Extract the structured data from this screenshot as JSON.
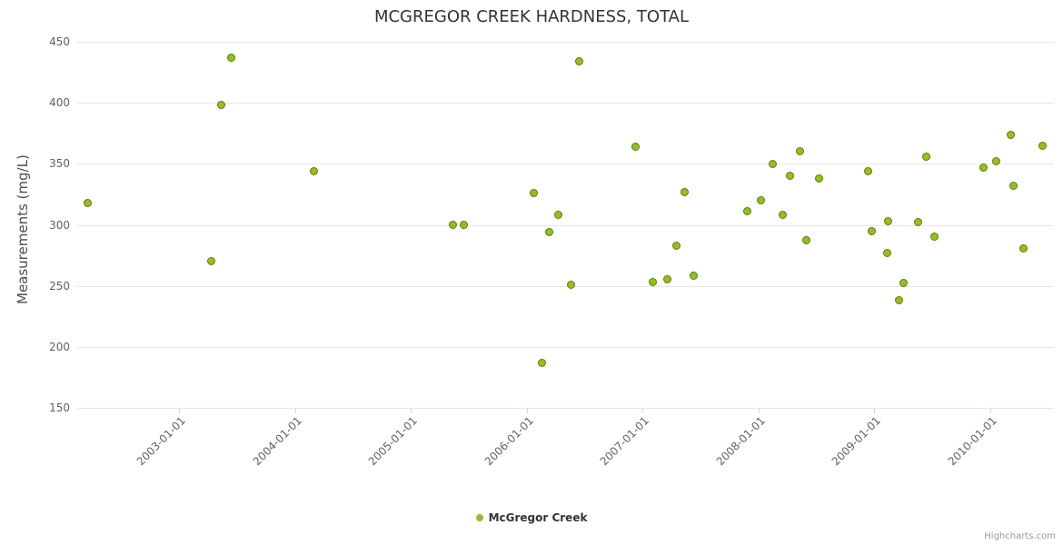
{
  "chart": {
    "credits": "Highcharts.com"
  },
  "chart_data": {
    "type": "scatter",
    "title": "MCGREGOR CREEK HARDNESS, TOTAL",
    "xlabel": "",
    "ylabel": "Measurements (mg/L)",
    "grid": "horizontal",
    "legend_position": "bottom-center",
    "x_axis": {
      "type": "datetime",
      "unit": "decimal_year",
      "min": 2002.12,
      "max": 2010.55,
      "tick_years": [
        2003,
        2004,
        2005,
        2006,
        2007,
        2008,
        2009,
        2010
      ],
      "tick_labels": [
        "2003-01-01",
        "2004-01-01",
        "2005-01-01",
        "2006-01-01",
        "2007-01-01",
        "2008-01-01",
        "2009-01-01",
        "2010-01-01"
      ]
    },
    "y_axis": {
      "min": 150,
      "max": 450,
      "tick_interval": 50,
      "ticks": [
        150,
        200,
        250,
        300,
        350,
        400,
        450
      ]
    },
    "series": [
      {
        "name": "McGregor Creek",
        "color": "#92c01e",
        "marker_stroke": "#5d7f00",
        "points": [
          [
            2002.21,
            318
          ],
          [
            2003.28,
            270
          ],
          [
            2003.36,
            398
          ],
          [
            2003.45,
            437
          ],
          [
            2004.16,
            344
          ],
          [
            2005.36,
            300
          ],
          [
            2005.46,
            300
          ],
          [
            2006.06,
            326
          ],
          [
            2006.13,
            187
          ],
          [
            2006.19,
            294
          ],
          [
            2006.27,
            308
          ],
          [
            2006.38,
            251
          ],
          [
            2006.45,
            434
          ],
          [
            2006.94,
            364
          ],
          [
            2007.09,
            253
          ],
          [
            2007.21,
            255
          ],
          [
            2007.29,
            283
          ],
          [
            2007.36,
            327
          ],
          [
            2007.44,
            258
          ],
          [
            2007.9,
            311
          ],
          [
            2008.02,
            320
          ],
          [
            2008.12,
            350
          ],
          [
            2008.21,
            308
          ],
          [
            2008.27,
            340
          ],
          [
            2008.36,
            360
          ],
          [
            2008.41,
            287
          ],
          [
            2008.52,
            338
          ],
          [
            2008.95,
            344
          ],
          [
            2008.98,
            295
          ],
          [
            2009.11,
            277
          ],
          [
            2009.12,
            303
          ],
          [
            2009.21,
            238
          ],
          [
            2009.25,
            252
          ],
          [
            2009.38,
            302
          ],
          [
            2009.45,
            356
          ],
          [
            2009.52,
            290
          ],
          [
            2009.94,
            347
          ],
          [
            2010.05,
            352
          ],
          [
            2010.18,
            374
          ],
          [
            2010.2,
            332
          ],
          [
            2010.29,
            281
          ],
          [
            2010.45,
            365
          ]
        ]
      }
    ]
  }
}
